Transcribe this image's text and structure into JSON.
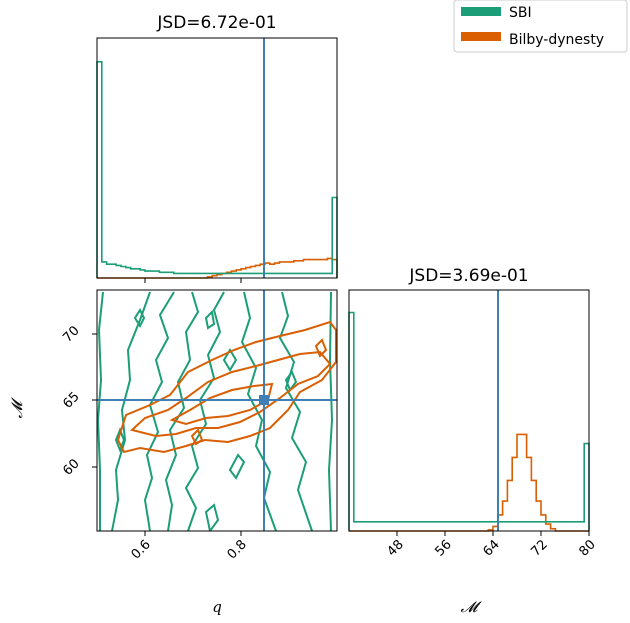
{
  "chart_data": {
    "type": "corner-plot",
    "colors": {
      "sbi": "#1b9e77",
      "bilby": "#d95f02",
      "truth": "#3f7fb5"
    },
    "legend": [
      {
        "label": "SBI",
        "color": "#1b9e77"
      },
      {
        "label": "Bilby-dynesty",
        "color": "#d95f02"
      }
    ],
    "legend_position": "top-right",
    "panels": {
      "q_hist": {
        "title": "JSD=6.72e-01",
        "xlim": [
          0.5,
          1.0
        ],
        "truth": 0.85,
        "sbi_density": [
          0.94,
          0.07,
          0.06,
          0.06,
          0.055,
          0.05,
          0.045,
          0.04,
          0.04,
          0.035,
          0.03,
          0.03,
          0.03,
          0.025,
          0.025,
          0.025,
          0.02,
          0.02,
          0.02,
          0.02,
          0.02,
          0.02,
          0.02,
          0.02,
          0.02,
          0.02,
          0.02,
          0.02,
          0.02,
          0.02,
          0.02,
          0.02,
          0.02,
          0.02,
          0.02,
          0.02,
          0.02,
          0.02,
          0.02,
          0.02,
          0.02,
          0.02,
          0.02,
          0.02,
          0.02,
          0.02,
          0.02,
          0.02,
          0.02,
          0.35
        ],
        "bilby_density": [
          0,
          0,
          0,
          0,
          0,
          0,
          0,
          0,
          0,
          0,
          0,
          0,
          0,
          0,
          0,
          0,
          0,
          0,
          0,
          0,
          0,
          0,
          0,
          0.005,
          0.01,
          0.015,
          0.02,
          0.025,
          0.03,
          0.035,
          0.04,
          0.045,
          0.05,
          0.055,
          0.06,
          0.065,
          0.06,
          0.065,
          0.07,
          0.07,
          0.07,
          0.075,
          0.075,
          0.08,
          0.08,
          0.08,
          0.08,
          0.08,
          0.085,
          0.08
        ]
      },
      "mc_hist": {
        "title": "JSD=3.69e-01",
        "xlim": [
          40,
          80
        ],
        "xticks": [
          "48",
          "56",
          "64",
          "72",
          "80"
        ],
        "truth": 65,
        "sbi_density": [
          0.95,
          0.04,
          0.04,
          0.04,
          0.04,
          0.04,
          0.04,
          0.04,
          0.04,
          0.04,
          0.04,
          0.04,
          0.04,
          0.04,
          0.04,
          0.04,
          0.04,
          0.04,
          0.04,
          0.04,
          0.04,
          0.04,
          0.04,
          0.04,
          0.04,
          0.04,
          0.04,
          0.04,
          0.04,
          0.04,
          0.04,
          0.04,
          0.04,
          0.04,
          0.04,
          0.04,
          0.04,
          0.04,
          0.04,
          0.04,
          0.04,
          0.04,
          0.04,
          0.04,
          0.04,
          0.04,
          0.04,
          0.04,
          0.04,
          0.38
        ],
        "bilby_density": [
          0,
          0,
          0,
          0,
          0,
          0,
          0,
          0,
          0,
          0,
          0,
          0,
          0,
          0,
          0,
          0,
          0,
          0,
          0,
          0,
          0,
          0,
          0,
          0,
          0,
          0,
          0,
          0,
          0,
          0.005,
          0.02,
          0.07,
          0.13,
          0.22,
          0.32,
          0.42,
          0.42,
          0.32,
          0.22,
          0.13,
          0.07,
          0.03,
          0.01,
          0,
          0,
          0,
          0,
          0,
          0,
          0
        ]
      },
      "joint": {
        "xlim": [
          0.5,
          1.0
        ],
        "ylim": [
          55,
          73
        ],
        "xticks": [
          "0.6",
          "0.8"
        ],
        "yticks": [
          "60",
          "65",
          "70"
        ],
        "xlabel": "q",
        "ylabel": "𝓜",
        "truth": [
          0.85,
          65
        ]
      }
    },
    "mc_xlabel": "𝓜"
  }
}
